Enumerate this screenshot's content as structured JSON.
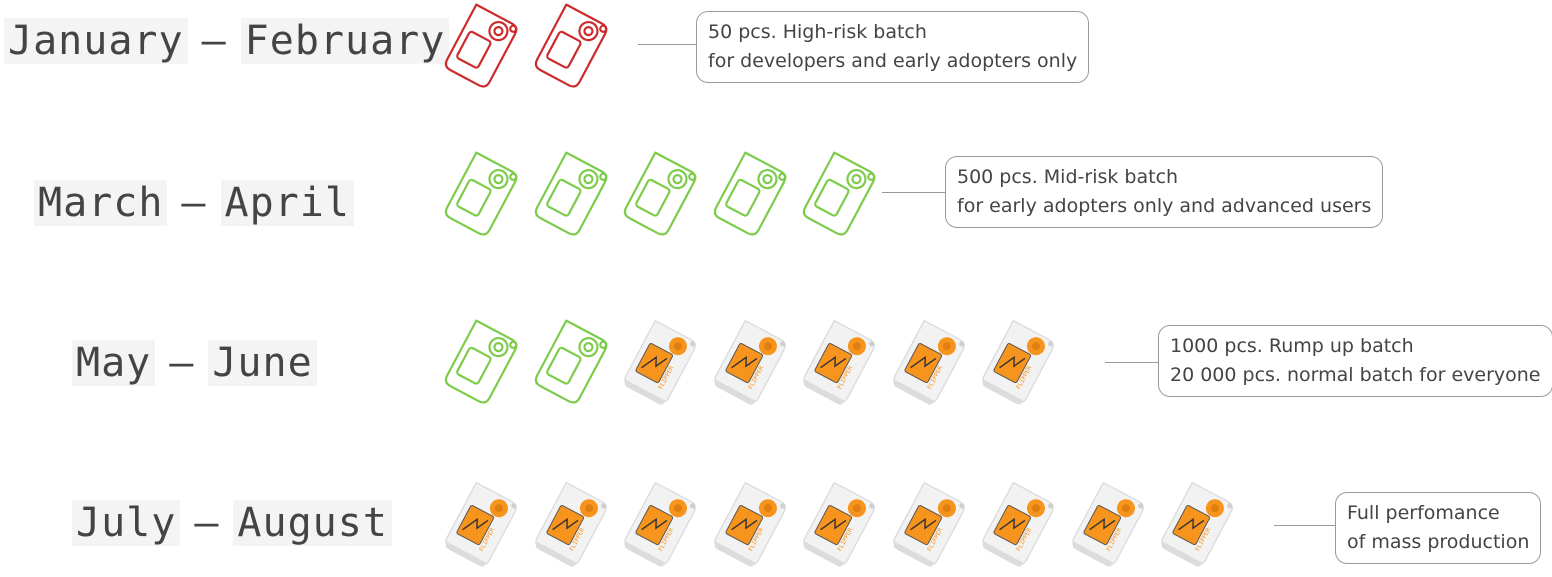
{
  "rows": [
    {
      "period_start": "January",
      "period_sep": "–",
      "period_end": "February",
      "devices": [
        "outline-red",
        "outline-red"
      ],
      "note_line1": "50 pcs. High-risk batch",
      "note_line2": "for developers and early adopters only"
    },
    {
      "period_start": "March",
      "period_sep": "–",
      "period_end": "April",
      "devices": [
        "outline-green",
        "outline-green",
        "outline-green",
        "outline-green",
        "outline-green"
      ],
      "note_line1": "500 pcs. Mid-risk batch",
      "note_line2": "for early adopters only and advanced users"
    },
    {
      "period_start": "May",
      "period_sep": "–",
      "period_end": "June",
      "devices": [
        "outline-green",
        "outline-green",
        "product",
        "product",
        "product",
        "product",
        "product"
      ],
      "note_line1": "1000 pcs. Rump up batch",
      "note_line2": "20 000 pcs. normal batch for everyone"
    },
    {
      "period_start": "July",
      "period_sep": "–",
      "period_end": "August",
      "devices": [
        "product",
        "product",
        "product",
        "product",
        "product",
        "product",
        "product",
        "product",
        "product"
      ],
      "note_line1": "Full perfomance",
      "note_line2": "of mass production"
    }
  ],
  "colors": {
    "outline_red": "#cc2b2b",
    "outline_green": "#7ccc4a",
    "device_body": "#f2f2f2",
    "device_orange": "#f7941d",
    "text": "#444444",
    "border": "#9a9a9a"
  },
  "icon_names": {
    "outline-red": "device-outline-red-icon",
    "outline-green": "device-outline-green-icon",
    "product": "device-product-icon"
  }
}
